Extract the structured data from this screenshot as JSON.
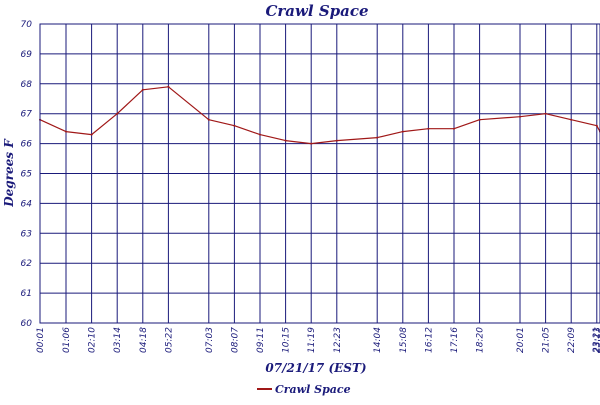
{
  "chart_data": {
    "type": "line",
    "title": "Crawl Space",
    "xlabel": "07/21/17 (EST)",
    "ylabel": "Degrees F",
    "ylim": [
      60,
      70
    ],
    "yticks": [
      "60",
      "61",
      "62",
      "63",
      "64",
      "65",
      "66",
      "67",
      "68",
      "69",
      "70"
    ],
    "xticks": [
      "00:01",
      "01:06",
      "02:10",
      "03:14",
      "04:18",
      "05:22",
      "07:03",
      "08:07",
      "09:11",
      "10:15",
      "11:19",
      "12:23",
      "14:04",
      "15:08",
      "16:12",
      "17:16",
      "18:20",
      "20:01",
      "21:05",
      "22:09",
      "23:13",
      "23:21"
    ],
    "grid": true,
    "legend_position": "bottom",
    "colors": {
      "line": "#a01818",
      "grid": "#1a1a7a",
      "text": "#1a1a7a"
    },
    "series": [
      {
        "name": "Crawl Space",
        "x": [
          "00:01",
          "01:06",
          "02:10",
          "03:14",
          "04:18",
          "05:22",
          "07:03",
          "08:07",
          "09:11",
          "10:15",
          "11:19",
          "12:23",
          "14:04",
          "15:08",
          "16:12",
          "17:16",
          "18:20",
          "20:01",
          "21:05",
          "22:09",
          "23:13",
          "23:21"
        ],
        "values": [
          66.8,
          66.4,
          66.3,
          67.0,
          67.8,
          67.9,
          66.8,
          66.6,
          66.3,
          66.1,
          66.0,
          66.1,
          66.2,
          66.4,
          66.5,
          66.5,
          66.8,
          66.9,
          67.0,
          66.8,
          66.6,
          66.4
        ]
      }
    ]
  }
}
